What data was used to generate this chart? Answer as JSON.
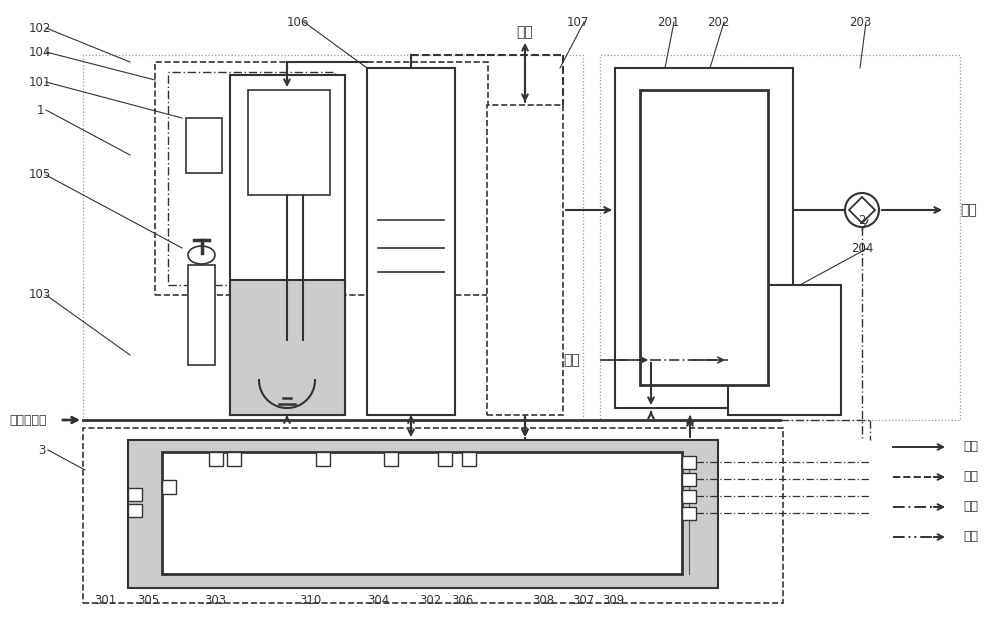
{
  "bg_color": "#ffffff",
  "lc": "#333333",
  "gray": "#cccccc",
  "fig_w": 10.0,
  "fig_h": 6.22,
  "dpi": 100,
  "labels_top": [
    [
      "102",
      42,
      28
    ],
    [
      "104",
      42,
      52
    ],
    [
      "101",
      42,
      82
    ],
    [
      "1",
      42,
      110
    ],
    [
      "105",
      42,
      175
    ],
    [
      "103",
      42,
      295
    ],
    [
      "106",
      298,
      22
    ],
    [
      "107",
      578,
      22
    ],
    [
      "201",
      668,
      22
    ],
    [
      "202",
      718,
      22
    ],
    [
      "203",
      862,
      22
    ],
    [
      "2",
      865,
      218
    ],
    [
      "204",
      865,
      245
    ]
  ],
  "labels_left": [
    [
      "3",
      44,
      450
    ]
  ],
  "labels_bottom": [
    [
      "301",
      105,
      600
    ],
    [
      "305",
      148,
      600
    ],
    [
      "303",
      215,
      600
    ],
    [
      "310",
      310,
      600
    ],
    [
      "304",
      378,
      600
    ],
    [
      "302",
      430,
      600
    ],
    [
      "306",
      462,
      600
    ],
    [
      "308",
      543,
      600
    ],
    [
      "307",
      583,
      600
    ],
    [
      "309",
      613,
      600
    ]
  ]
}
